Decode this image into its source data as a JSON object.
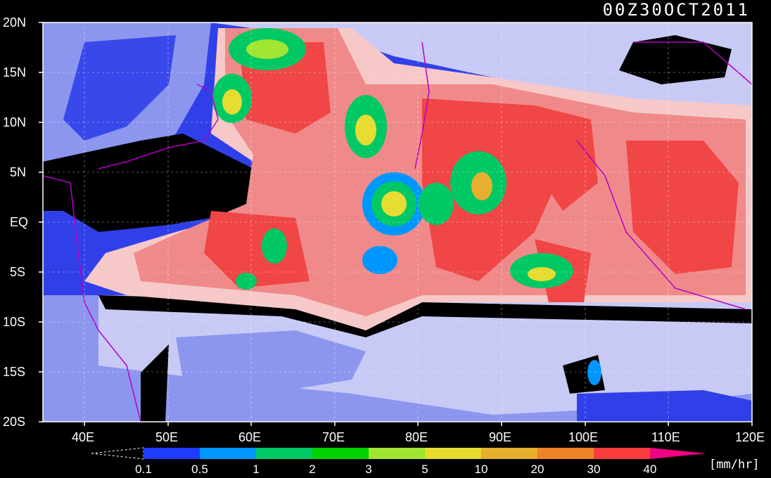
{
  "title": "00Z30OCT2011",
  "units": "[mm/hr]",
  "lat_labels": [
    "20N",
    "15N",
    "10N",
    "5N",
    "EQ",
    "5S",
    "10S",
    "15S",
    "20S"
  ],
  "lon_labels": [
    "40E",
    "50E",
    "60E",
    "70E",
    "80E",
    "90E",
    "100E",
    "110E",
    "120E"
  ],
  "legend": {
    "ticks": [
      "0.1",
      "0.5",
      "1",
      "2",
      "3",
      "5",
      "10",
      "20",
      "30",
      "40"
    ],
    "colors": [
      "#1e3cff",
      "#0096ff",
      "#00c864",
      "#00d200",
      "#a0e632",
      "#e6dc32",
      "#e6af2d",
      "#f08228",
      "#fa3c3c",
      "#f00082"
    ]
  },
  "map": {
    "lon_range": [
      35,
      120
    ],
    "lat_range": [
      -20,
      20
    ],
    "grid": true,
    "colors": {
      "background": "#3040e8",
      "pale_blue": "#8c96ee",
      "lavender": "#c8caf5",
      "light_pink": "#f6c8c8",
      "salmon": "#f08a8a",
      "red": "#f04646",
      "no_data": "#000000",
      "coastline": "#b400c8"
    }
  }
}
